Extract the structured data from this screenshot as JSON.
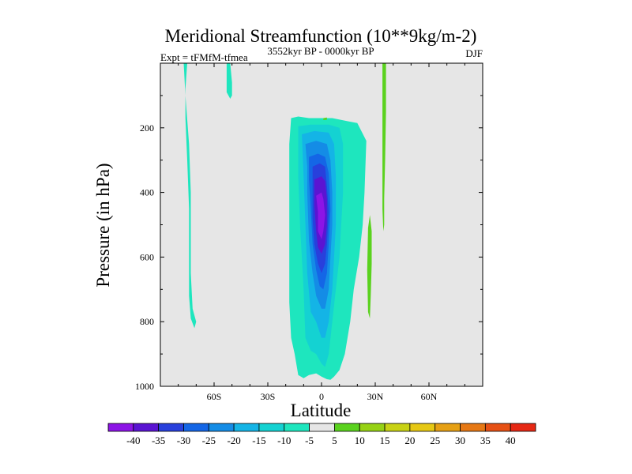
{
  "chart_data": {
    "type": "filled-contour",
    "title": "Meridional Streamfunction (10**9kg/m-2)",
    "left_string": "Expt = tFMfM-tfmea",
    "center_string": "3552kyr BP - 0000kyr BP",
    "right_string": "DJF",
    "xlabel": "Latitude",
    "ylabel": "Pressure (in hPa)",
    "xlim": [
      -90,
      90
    ],
    "ylim": [
      1000,
      0
    ],
    "x_ticks": [
      {
        "value": -60,
        "label": "60S"
      },
      {
        "value": -30,
        "label": "30S"
      },
      {
        "value": 0,
        "label": "0"
      },
      {
        "value": 30,
        "label": "30N"
      },
      {
        "value": 60,
        "label": "60N"
      }
    ],
    "y_ticks": [
      {
        "value": 200,
        "label": "200"
      },
      {
        "value": 400,
        "label": "400"
      },
      {
        "value": 600,
        "label": "600"
      },
      {
        "value": 800,
        "label": "800"
      },
      {
        "value": 1000,
        "label": "1000"
      }
    ],
    "missing_value_color": "#e6e6e6",
    "colorbar": {
      "levels": [
        -40,
        -35,
        -30,
        -25,
        -20,
        -15,
        -10,
        -5,
        5,
        10,
        15,
        20,
        25,
        30,
        35,
        40
      ],
      "labels": [
        "-40",
        "-35",
        "-30",
        "-25",
        "-20",
        "-15",
        "-10",
        "-5",
        "5",
        "10",
        "15",
        "20",
        "25",
        "30",
        "35",
        "40"
      ],
      "colors": [
        "#8c14e6",
        "#5a14d2",
        "#2840dc",
        "#1466e6",
        "#148ce6",
        "#14b4e6",
        "#14d2d2",
        "#1ee6be",
        "#e6e6e6",
        "#5ad21e",
        "#96d214",
        "#c8d214",
        "#e6c814",
        "#e6a014",
        "#e67814",
        "#e65014",
        "#e62814"
      ]
    },
    "regions": [
      {
        "name": "sh-high-lat-negative",
        "color_index": 7,
        "points": [
          [
            -77,
            0
          ],
          [
            -75,
            0
          ],
          [
            -76,
            80
          ],
          [
            -76,
            170
          ],
          [
            -75,
            300
          ],
          [
            -74,
            450
          ],
          [
            -74,
            600
          ],
          [
            -74,
            720
          ],
          [
            -73,
            790
          ],
          [
            -71,
            820
          ],
          [
            -70,
            800
          ],
          [
            -72,
            760
          ],
          [
            -73,
            650
          ],
          [
            -73,
            500
          ],
          [
            -73,
            400
          ],
          [
            -74,
            250
          ],
          [
            -76,
            100
          ]
        ]
      },
      {
        "name": "sh-polar-cap-negative",
        "color_index": 7,
        "points": [
          [
            -53,
            0
          ],
          [
            -51,
            0
          ],
          [
            -50,
            60
          ],
          [
            -50,
            100
          ],
          [
            -51,
            110
          ],
          [
            -53,
            90
          ]
        ]
      },
      {
        "name": "tropical-cell-outer",
        "color_index": 7,
        "points": [
          [
            -17,
            170
          ],
          [
            -13,
            165
          ],
          [
            -7,
            170
          ],
          [
            6,
            170
          ],
          [
            15,
            180
          ],
          [
            20,
            185
          ],
          [
            25,
            240
          ],
          [
            24,
            400
          ],
          [
            23,
            500
          ],
          [
            21,
            600
          ],
          [
            18,
            700
          ],
          [
            16,
            800
          ],
          [
            13,
            900
          ],
          [
            10,
            950
          ],
          [
            7,
            970
          ],
          [
            5,
            980
          ],
          [
            3,
            978
          ],
          [
            0,
            970
          ],
          [
            -3,
            960
          ],
          [
            -7,
            965
          ],
          [
            -10,
            975
          ],
          [
            -13,
            965
          ],
          [
            -15,
            900
          ],
          [
            -17,
            850
          ],
          [
            -18,
            740
          ],
          [
            -18,
            600
          ],
          [
            -18,
            400
          ],
          [
            -18,
            250
          ]
        ]
      },
      {
        "name": "tropical-cell-minus-10",
        "color_index": 6,
        "points": [
          [
            -13,
            195
          ],
          [
            -6,
            190
          ],
          [
            4,
            190
          ],
          [
            10,
            200
          ],
          [
            12,
            250
          ],
          [
            12,
            400
          ],
          [
            11,
            500
          ],
          [
            10,
            600
          ],
          [
            8,
            700
          ],
          [
            6,
            800
          ],
          [
            4,
            900
          ],
          [
            2,
            940
          ],
          [
            0,
            930
          ],
          [
            -3,
            900
          ],
          [
            -6,
            890
          ],
          [
            -9,
            850
          ],
          [
            -10,
            700
          ],
          [
            -12,
            500
          ],
          [
            -13,
            350
          ]
        ]
      },
      {
        "name": "tropical-cell-minus-15",
        "color_index": 5,
        "points": [
          [
            -11,
            220
          ],
          [
            -4,
            210
          ],
          [
            4,
            215
          ],
          [
            7,
            250
          ],
          [
            8,
            350
          ],
          [
            8,
            500
          ],
          [
            7,
            600
          ],
          [
            6,
            700
          ],
          [
            4,
            800
          ],
          [
            2,
            850
          ],
          [
            0,
            850
          ],
          [
            -3,
            800
          ],
          [
            -6,
            770
          ],
          [
            -8,
            650
          ],
          [
            -9,
            500
          ],
          [
            -10,
            350
          ]
        ]
      },
      {
        "name": "tropical-cell-minus-20",
        "color_index": 4,
        "points": [
          [
            -9,
            250
          ],
          [
            -3,
            240
          ],
          [
            3,
            250
          ],
          [
            5,
            300
          ],
          [
            6,
            400
          ],
          [
            6,
            500
          ],
          [
            5,
            600
          ],
          [
            4,
            700
          ],
          [
            2,
            760
          ],
          [
            0,
            760
          ],
          [
            -3,
            720
          ],
          [
            -5,
            650
          ],
          [
            -7,
            550
          ],
          [
            -8,
            400
          ],
          [
            -8,
            320
          ]
        ]
      },
      {
        "name": "tropical-cell-minus-25",
        "color_index": 3,
        "points": [
          [
            -7,
            290
          ],
          [
            -2,
            280
          ],
          [
            2,
            290
          ],
          [
            4,
            340
          ],
          [
            5,
            450
          ],
          [
            4,
            560
          ],
          [
            3,
            650
          ],
          [
            1,
            700
          ],
          [
            -1,
            690
          ],
          [
            -3,
            640
          ],
          [
            -5,
            560
          ],
          [
            -6,
            450
          ],
          [
            -7,
            360
          ]
        ]
      },
      {
        "name": "tropical-cell-minus-30",
        "color_index": 2,
        "points": [
          [
            -5,
            320
          ],
          [
            -1,
            310
          ],
          [
            2,
            320
          ],
          [
            3,
            380
          ],
          [
            4,
            460
          ],
          [
            3,
            560
          ],
          [
            2,
            620
          ],
          [
            0,
            650
          ],
          [
            -2,
            620
          ],
          [
            -4,
            560
          ],
          [
            -5,
            480
          ],
          [
            -5,
            390
          ]
        ]
      },
      {
        "name": "tropical-cell-minus-35",
        "color_index": 1,
        "points": [
          [
            -4,
            360
          ],
          [
            0,
            350
          ],
          [
            2,
            365
          ],
          [
            3,
            420
          ],
          [
            3,
            500
          ],
          [
            2,
            560
          ],
          [
            0,
            590
          ],
          [
            -2,
            570
          ],
          [
            -3,
            520
          ],
          [
            -4,
            440
          ]
        ]
      },
      {
        "name": "tropical-cell-minus-40",
        "color_index": 0,
        "points": [
          [
            -3,
            410
          ],
          [
            0,
            400
          ],
          [
            1,
            420
          ],
          [
            2,
            470
          ],
          [
            1,
            520
          ],
          [
            0,
            545
          ],
          [
            -2,
            520
          ],
          [
            -2,
            460
          ]
        ]
      },
      {
        "name": "nh-subtropical-positive-upper",
        "color_index": 9,
        "points": [
          [
            34,
            0
          ],
          [
            36,
            0
          ],
          [
            36,
            50
          ],
          [
            36,
            150
          ],
          [
            35.5,
            300
          ],
          [
            35,
            420
          ],
          [
            35,
            500
          ],
          [
            34.5,
            520
          ],
          [
            34,
            450
          ],
          [
            34,
            300
          ],
          [
            34,
            120
          ]
        ]
      },
      {
        "name": "nh-subtropical-positive-lower",
        "color_index": 9,
        "points": [
          [
            26,
            510
          ],
          [
            27,
            470
          ],
          [
            28,
            520
          ],
          [
            28,
            620
          ],
          [
            27.5,
            720
          ],
          [
            27,
            790
          ],
          [
            26,
            770
          ],
          [
            25.5,
            640
          ]
        ]
      },
      {
        "name": "upper-equatorial-positive",
        "color_index": 9,
        "points": [
          [
            1,
            170
          ],
          [
            3,
            168
          ],
          [
            3,
            175
          ],
          [
            1,
            176
          ]
        ]
      }
    ]
  }
}
